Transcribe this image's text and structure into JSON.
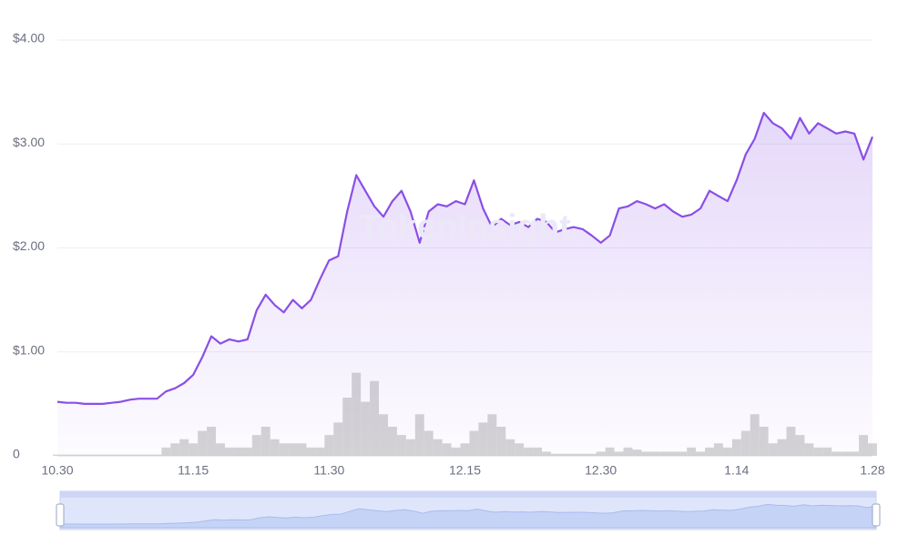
{
  "chart_data": {
    "type": "line",
    "watermark": "TokenInsight",
    "categories": [
      "10.30",
      null,
      null,
      null,
      null,
      null,
      null,
      null,
      null,
      null,
      null,
      null,
      null,
      null,
      null,
      "11.15",
      null,
      null,
      null,
      null,
      null,
      null,
      null,
      null,
      null,
      null,
      null,
      null,
      null,
      null,
      "11.30",
      null,
      null,
      null,
      null,
      null,
      null,
      null,
      null,
      null,
      null,
      null,
      null,
      null,
      null,
      "12.15",
      null,
      null,
      null,
      null,
      null,
      null,
      null,
      null,
      null,
      null,
      null,
      null,
      null,
      null,
      "12.30",
      null,
      null,
      null,
      null,
      null,
      null,
      null,
      null,
      null,
      null,
      null,
      null,
      null,
      null,
      "1.14",
      null,
      null,
      null,
      null,
      null,
      null,
      null,
      null,
      null,
      null,
      null,
      null,
      null,
      null,
      "1.28"
    ],
    "series": [
      {
        "color": "#8a4fe6",
        "values": [
          0.52,
          0.51,
          0.51,
          0.5,
          0.5,
          0.5,
          0.51,
          0.52,
          0.54,
          0.55,
          0.55,
          0.55,
          0.62,
          0.65,
          0.7,
          0.78,
          0.95,
          1.15,
          1.08,
          1.12,
          1.1,
          1.12,
          1.4,
          1.55,
          1.45,
          1.38,
          1.5,
          1.42,
          1.5,
          1.7,
          1.88,
          1.92,
          2.35,
          2.7,
          2.55,
          2.4,
          2.3,
          2.45,
          2.55,
          2.35,
          2.05,
          2.35,
          2.42,
          2.4,
          2.45,
          2.42,
          2.65,
          2.38,
          2.2,
          2.28,
          2.22,
          2.25,
          2.2,
          2.28,
          2.25,
          2.15,
          2.18,
          2.2,
          2.18,
          2.12,
          2.05,
          2.12,
          2.38,
          2.4,
          2.45,
          2.42,
          2.38,
          2.42,
          2.35,
          2.3,
          2.32,
          2.38,
          2.55,
          2.5,
          2.45,
          2.65,
          2.9,
          3.05,
          3.3,
          3.2,
          3.15,
          3.05,
          3.25,
          3.1,
          3.2,
          3.15,
          3.1,
          3.12,
          3.1,
          2.85,
          3.07
        ]
      },
      {
        "color": "#cccccc",
        "type": "bar",
        "axis": "y2",
        "values": [
          0.3,
          0.3,
          0.3,
          0.3,
          0.3,
          0.3,
          0.3,
          0.3,
          0.3,
          0.3,
          0.3,
          0.3,
          2,
          3,
          4,
          3,
          6,
          7,
          3,
          2,
          2,
          2,
          5,
          7,
          4,
          3,
          3,
          3,
          2,
          2,
          5,
          8,
          14,
          20,
          13,
          18,
          10,
          7,
          5,
          4,
          10,
          6,
          4,
          3,
          2,
          3,
          6,
          8,
          10,
          7,
          4,
          3,
          2,
          2,
          1,
          0.5,
          0.5,
          0.5,
          0.5,
          0.5,
          1,
          2,
          1,
          2,
          1.5,
          1,
          1,
          1,
          1,
          1,
          2,
          1,
          2,
          3,
          2,
          4,
          6,
          10,
          7,
          3,
          4,
          7,
          5,
          3,
          2,
          2,
          1,
          1,
          1,
          5,
          3
        ]
      }
    ],
    "ylim": [
      0,
      4
    ],
    "yticks": [
      0,
      {
        "value": 1,
        "label": "$1.00"
      },
      {
        "value": 2,
        "label": "$2.00"
      },
      {
        "value": 3,
        "label": "$3.00"
      },
      {
        "value": 4,
        "label": "$4.00"
      }
    ],
    "y2lim": [
      0,
      100
    ],
    "grid": true
  }
}
